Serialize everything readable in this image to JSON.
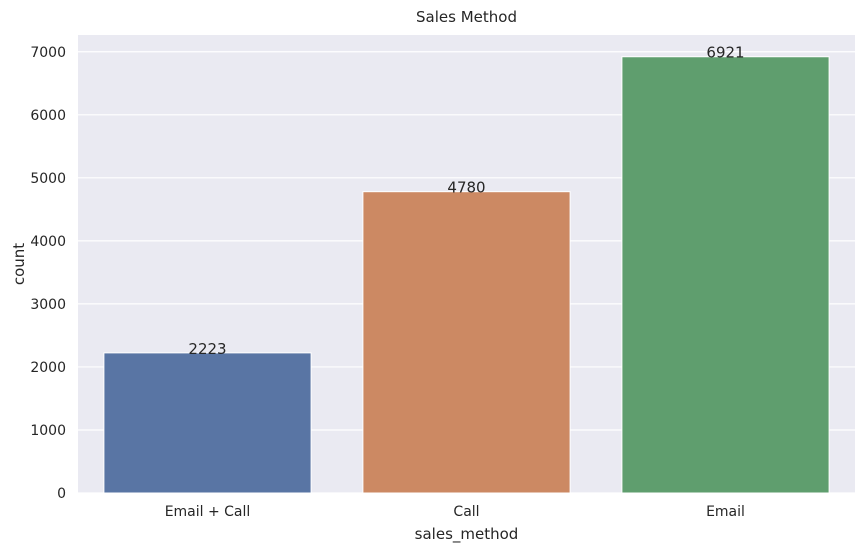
{
  "chart_data": {
    "type": "bar",
    "title": "Sales Method",
    "xlabel": "sales_method",
    "ylabel": "count",
    "categories": [
      "Email + Call",
      "Call",
      "Email"
    ],
    "values": [
      2223,
      4780,
      6921
    ],
    "data_labels": [
      "2223",
      "4780",
      "6921"
    ],
    "colors": [
      "#5975a4",
      "#cc8963",
      "#5f9e6e"
    ],
    "ylim": [
      0,
      7266
    ],
    "yticks": [
      0,
      1000,
      2000,
      3000,
      4000,
      5000,
      6000,
      7000
    ],
    "ytick_labels": [
      "0",
      "1000",
      "2000",
      "3000",
      "4000",
      "5000",
      "6000",
      "7000"
    ],
    "grid": true,
    "background": "#eaeaf2"
  }
}
